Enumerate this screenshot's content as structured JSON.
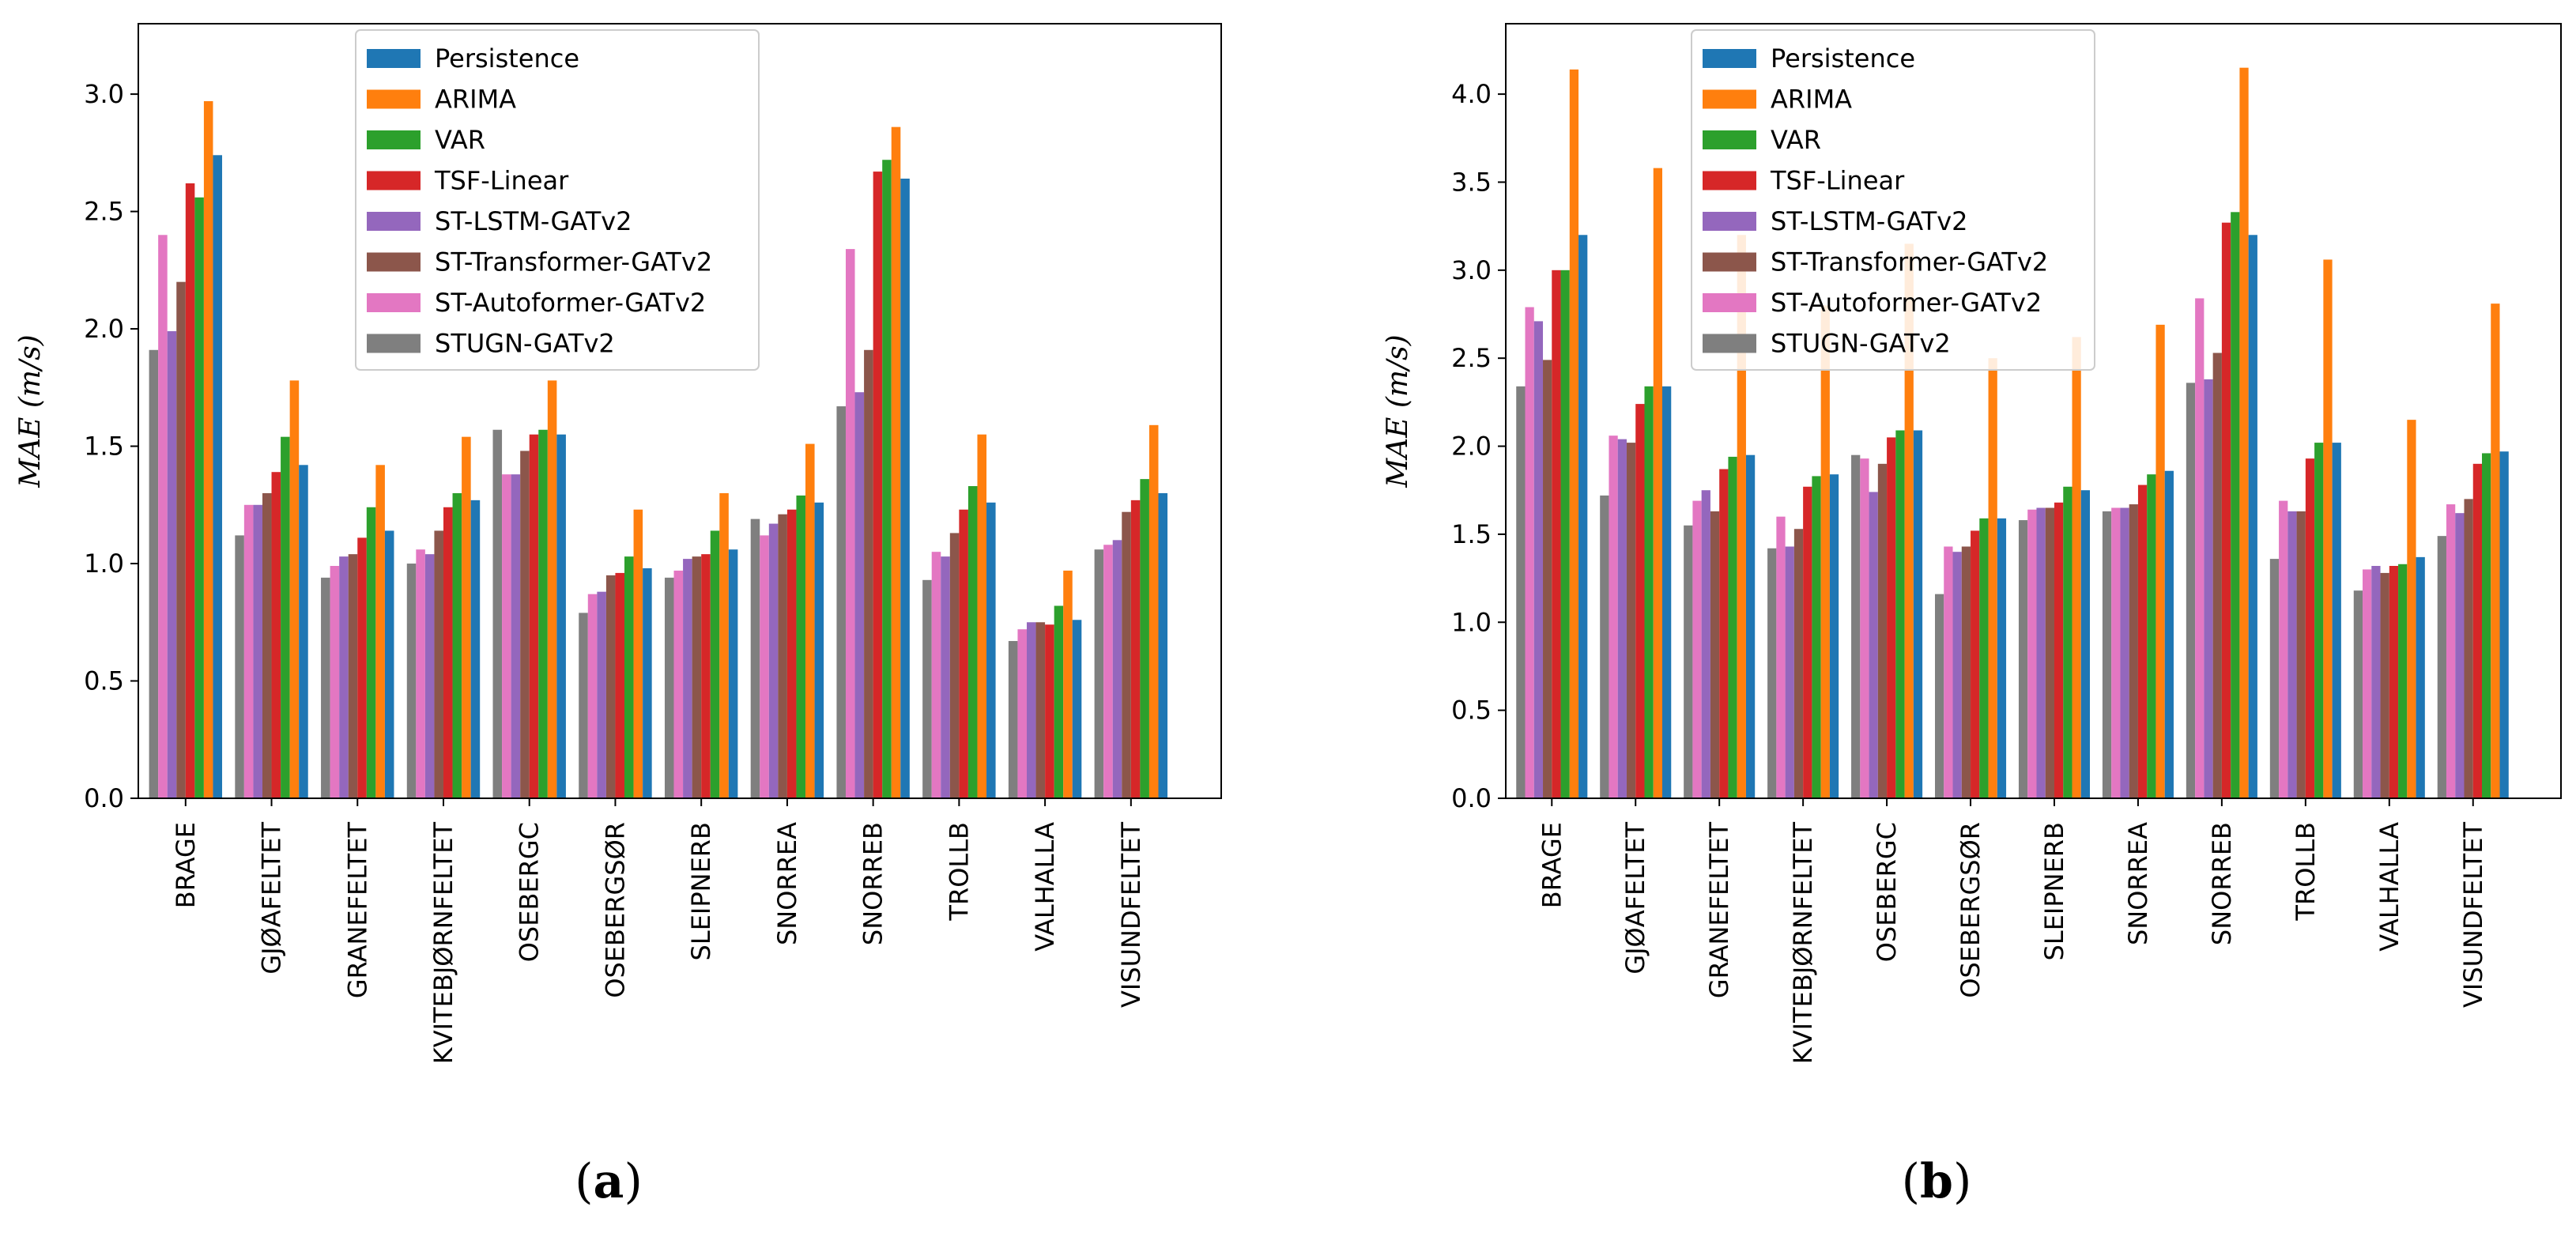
{
  "chart_data": [
    {
      "type": "bar",
      "panel_label": "a",
      "ylabel": "MAE (m/s)",
      "ylim": [
        0,
        3.3
      ],
      "yticks": [
        "0.0",
        "0.5",
        "1.0",
        "1.5",
        "2.0",
        "2.5",
        "3.0"
      ],
      "legend_placement": "top-center",
      "categories": [
        "BRAGE",
        "GJØAFELTET",
        "GRANEFELTET",
        "KVITEBJØRNFELTET",
        "OSEBERGC",
        "OSEBERGSØR",
        "SLEIPNERB",
        "SNORREA",
        "SNORREB",
        "TROLLB",
        "VALHALLA",
        "VISUNDFELTET"
      ],
      "series": [
        {
          "name": "Persistence",
          "color": "#1f77b4",
          "values": [
            2.74,
            1.42,
            1.14,
            1.27,
            1.55,
            0.98,
            1.06,
            1.26,
            2.64,
            1.26,
            0.76,
            1.3
          ]
        },
        {
          "name": "ARIMA",
          "color": "#ff7f0e",
          "values": [
            2.97,
            1.78,
            1.42,
            1.54,
            1.78,
            1.23,
            1.3,
            1.51,
            2.86,
            1.55,
            0.97,
            1.59
          ]
        },
        {
          "name": "VAR",
          "color": "#2ca02c",
          "values": [
            2.56,
            1.54,
            1.24,
            1.3,
            1.57,
            1.03,
            1.14,
            1.29,
            2.72,
            1.33,
            0.82,
            1.36
          ]
        },
        {
          "name": "TSF-Linear",
          "color": "#d62728",
          "values": [
            2.62,
            1.39,
            1.11,
            1.24,
            1.55,
            0.96,
            1.04,
            1.23,
            2.67,
            1.23,
            0.74,
            1.27
          ]
        },
        {
          "name": "ST-LSTM-GATv2",
          "color": "#9467bd",
          "values": [
            1.99,
            1.25,
            1.03,
            1.04,
            1.38,
            0.88,
            1.02,
            1.17,
            1.73,
            1.03,
            0.75,
            1.1
          ]
        },
        {
          "name": "ST-Transformer-GATv2",
          "color": "#8c564b",
          "values": [
            2.2,
            1.3,
            1.04,
            1.14,
            1.48,
            0.95,
            1.03,
            1.21,
            1.91,
            1.13,
            0.75,
            1.22
          ]
        },
        {
          "name": "ST-Autoformer-GATv2",
          "color": "#e377c2",
          "values": [
            2.4,
            1.25,
            0.99,
            1.06,
            1.38,
            0.87,
            0.97,
            1.12,
            2.34,
            1.05,
            0.72,
            1.08
          ]
        },
        {
          "name": "STUGN-GATv2",
          "color": "#7f7f7f",
          "values": [
            1.91,
            1.12,
            0.94,
            1.0,
            1.57,
            0.79,
            0.94,
            1.19,
            1.67,
            0.93,
            0.67,
            1.06
          ]
        }
      ]
    },
    {
      "type": "bar",
      "panel_label": "b",
      "ylabel": "MAE (m/s)",
      "ylim": [
        0,
        4.4
      ],
      "yticks": [
        "0.0",
        "0.5",
        "1.0",
        "1.5",
        "2.0",
        "2.5",
        "3.0",
        "3.5",
        "4.0"
      ],
      "legend_placement": "top-center",
      "categories": [
        "BRAGE",
        "GJØAFELTET",
        "GRANEFELTET",
        "KVITEBJØRNFELTET",
        "OSEBERGC",
        "OSEBERGSØR",
        "SLEIPNERB",
        "SNORREA",
        "SNORREB",
        "TROLLB",
        "VALHALLA",
        "VISUNDFELTET"
      ],
      "series": [
        {
          "name": "Persistence",
          "color": "#1f77b4",
          "values": [
            3.2,
            2.34,
            1.95,
            1.84,
            2.09,
            1.59,
            1.75,
            1.86,
            3.2,
            2.02,
            1.37,
            1.97
          ]
        },
        {
          "name": "ARIMA",
          "color": "#ff7f0e",
          "values": [
            4.14,
            3.58,
            3.2,
            2.8,
            3.15,
            2.5,
            2.62,
            2.69,
            4.15,
            3.06,
            2.15,
            2.81
          ]
        },
        {
          "name": "VAR",
          "color": "#2ca02c",
          "values": [
            3.0,
            2.34,
            1.94,
            1.83,
            2.09,
            1.59,
            1.77,
            1.84,
            3.33,
            2.02,
            1.33,
            1.96
          ]
        },
        {
          "name": "TSF-Linear",
          "color": "#d62728",
          "values": [
            3.0,
            2.24,
            1.87,
            1.77,
            2.05,
            1.52,
            1.68,
            1.78,
            3.27,
            1.93,
            1.32,
            1.9
          ]
        },
        {
          "name": "ST-LSTM-GATv2",
          "color": "#9467bd",
          "values": [
            2.71,
            2.04,
            1.75,
            1.43,
            1.74,
            1.4,
            1.65,
            1.65,
            2.38,
            1.63,
            1.32,
            1.62
          ]
        },
        {
          "name": "ST-Transformer-GATv2",
          "color": "#8c564b",
          "values": [
            2.49,
            2.02,
            1.63,
            1.53,
            1.9,
            1.43,
            1.65,
            1.67,
            2.53,
            1.63,
            1.28,
            1.7
          ]
        },
        {
          "name": "ST-Autoformer-GATv2",
          "color": "#e377c2",
          "values": [
            2.79,
            2.06,
            1.69,
            1.6,
            1.93,
            1.43,
            1.64,
            1.65,
            2.84,
            1.69,
            1.3,
            1.67
          ]
        },
        {
          "name": "STUGN-GATv2",
          "color": "#7f7f7f",
          "values": [
            2.34,
            1.72,
            1.55,
            1.42,
            1.95,
            1.16,
            1.58,
            1.63,
            2.36,
            1.36,
            1.18,
            1.49
          ]
        }
      ]
    }
  ]
}
